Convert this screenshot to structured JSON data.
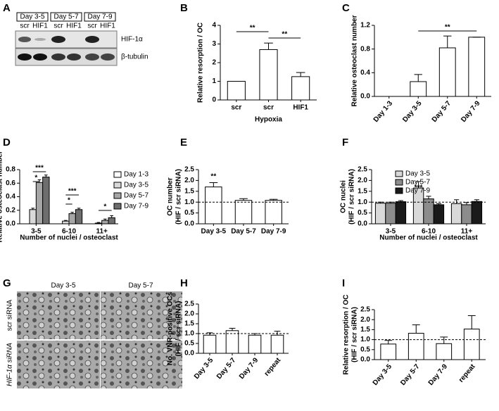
{
  "panels": [
    "A",
    "B",
    "C",
    "D",
    "E",
    "F",
    "G",
    "H",
    "I"
  ],
  "blot": {
    "days": [
      "Day 3-5",
      "Day 5-7",
      "Day 7-9"
    ],
    "lanes": [
      "scr",
      "HIF1",
      "scr",
      "HIF1",
      "scr",
      "HIF1"
    ],
    "bands": [
      "HIF-1α",
      "β-tubulin"
    ]
  },
  "micrograph": {
    "columns": [
      "Day 3-5",
      "Day 5-7"
    ],
    "rows": [
      "scr siRNA",
      "HIF-1α siRNA"
    ]
  },
  "chart_data": [
    {
      "type": "bar",
      "ylabel": "Relative resorption / OC",
      "xlabel": "Hypoxia",
      "categories": [
        "scr",
        "scr",
        "HIF1"
      ],
      "values": [
        1,
        2.7,
        1.25
      ],
      "errors": [
        0,
        0.35,
        0.22
      ],
      "color": "#ffffff",
      "ylim": [
        0,
        4
      ],
      "yticks": [
        0,
        1,
        2,
        3,
        4
      ],
      "annotations": [
        "**",
        "**"
      ]
    },
    {
      "type": "bar",
      "ylabel": "Relative osteoclast number",
      "categories": [
        "Day 1-3",
        "Day 3-5",
        "Day 5-7",
        "Day 7-9"
      ],
      "values": [
        0,
        0.25,
        0.82,
        1.0
      ],
      "errors": [
        0,
        0.12,
        0.2,
        0
      ],
      "color": "#ffffff",
      "ylim": [
        0,
        1.2
      ],
      "yticks": [
        {
          "value": 0,
          "label": "0.0"
        },
        0.4,
        0.8,
        1.2
      ],
      "annotations": [
        "**"
      ]
    },
    {
      "type": "bar",
      "ylabel": "Relative osteoclast number",
      "xlabel": "Number of nuclei / osteoclast",
      "categories": [
        "3-5",
        "6-10",
        "11+"
      ],
      "series": [
        {
          "name": "Day 1-3",
          "color": "#ffffff",
          "values": [
            0,
            0,
            0
          ],
          "errors": [
            0,
            0,
            0
          ]
        },
        {
          "name": "Day 3-5",
          "color": "#d9d9d9",
          "values": [
            0.21,
            0.04,
            0.01
          ],
          "errors": [
            0.02,
            0.01,
            0.01
          ]
        },
        {
          "name": "Day 5-7",
          "color": "#a6a6a6",
          "values": [
            0.61,
            0.15,
            0.05
          ],
          "errors": [
            0.04,
            0.02,
            0.02
          ]
        },
        {
          "name": "Day 7-9",
          "color": "#6e6e6e",
          "values": [
            0.69,
            0.21,
            0.09
          ],
          "errors": [
            0.03,
            0.02,
            0.03
          ]
        }
      ],
      "ylim": [
        0,
        0.8
      ],
      "yticks": [
        {
          "value": 0,
          "label": "0.0"
        },
        0.2,
        0.4,
        0.6,
        0.8
      ],
      "legend": "right",
      "annotations": [
        "***",
        "*",
        "***",
        "*",
        "*"
      ]
    },
    {
      "type": "bar",
      "ylabel": [
        "OC number",
        "(HIF / scr siRNA)"
      ],
      "categories": [
        "Day 3-5",
        "Day 5-7",
        "Day 7-9"
      ],
      "values": [
        1.7,
        1.08,
        1.08
      ],
      "errors": [
        0.2,
        0.08,
        0.05
      ],
      "color": "#ffffff",
      "refline": 1,
      "ylim": [
        0,
        2.5
      ],
      "yticks": [
        {
          "value": 0,
          "label": "0.0"
        },
        0.5,
        {
          "value": 1,
          "label": "1.0"
        },
        1.5,
        {
          "value": 2,
          "label": "2.0"
        },
        2.5
      ],
      "annotations": [
        "**"
      ]
    },
    {
      "type": "bar",
      "ylabel": [
        "OC nuclei",
        "(HIF / scr siRNA)"
      ],
      "xlabel": "Number of nuclei / osteoclast",
      "categories": [
        "3-5",
        "6-10",
        "11+"
      ],
      "series": [
        {
          "name": "Day 3-5",
          "color": "#d9d9d9",
          "values": [
            0.95,
            1.65,
            0.93
          ],
          "errors": [
            0.05,
            0.3,
            0.18
          ]
        },
        {
          "name": "Day 5-7",
          "color": "#8c8c8c",
          "values": [
            0.95,
            1.15,
            0.88
          ],
          "errors": [
            0.05,
            0.12,
            0.1
          ]
        },
        {
          "name": "Day 7-9",
          "color": "#1a1a1a",
          "values": [
            1.02,
            0.88,
            1.03
          ],
          "errors": [
            0.05,
            0.05,
            0.08
          ]
        }
      ],
      "refline": 1,
      "legend": "upper right",
      "ylim": [
        0,
        2.5
      ],
      "yticks": [
        {
          "value": 0,
          "label": "0.0"
        },
        0.5,
        {
          "value": 1,
          "label": "1.0"
        },
        1.5,
        {
          "value": 2,
          "label": "2.0"
        },
        2.5
      ],
      "annotations": [
        "***"
      ]
    },
    {
      "type": "bar",
      "ylabel": [
        "No. VNR-positive OCs",
        "(HIF / scr siRNA)"
      ],
      "categories": [
        "Day 3-5",
        "Day 5-7",
        "Day 7-9",
        "repeat"
      ],
      "values": [
        0.92,
        1.15,
        0.92,
        0.92
      ],
      "errors": [
        0.12,
        0.12,
        0.08,
        0.2
      ],
      "color": "#ffffff",
      "refline": 1,
      "ylim": [
        0,
        2.5
      ],
      "yticks": [
        {
          "value": 0,
          "label": "0.0"
        },
        0.5,
        {
          "value": 1,
          "label": "1.0"
        },
        1.5,
        {
          "value": 2,
          "label": "2.0"
        },
        2.5
      ]
    },
    {
      "type": "bar",
      "ylabel": [
        "Relative resorption / OC",
        "(HIF / scr siRNA)"
      ],
      "categories": [
        "Day 3-5",
        "Day 5-7",
        "Day 7-9",
        "repeat"
      ],
      "values": [
        0.78,
        1.32,
        0.8,
        1.53
      ],
      "errors": [
        0.18,
        0.42,
        0.33,
        0.67
      ],
      "color": "#ffffff",
      "refline": 1,
      "ylim": [
        0,
        2.5
      ],
      "yticks": [
        {
          "value": 0,
          "label": "0.0"
        },
        0.5,
        {
          "value": 1,
          "label": "1.0"
        },
        1.5,
        {
          "value": 2,
          "label": "2.0"
        },
        2.5
      ]
    }
  ]
}
